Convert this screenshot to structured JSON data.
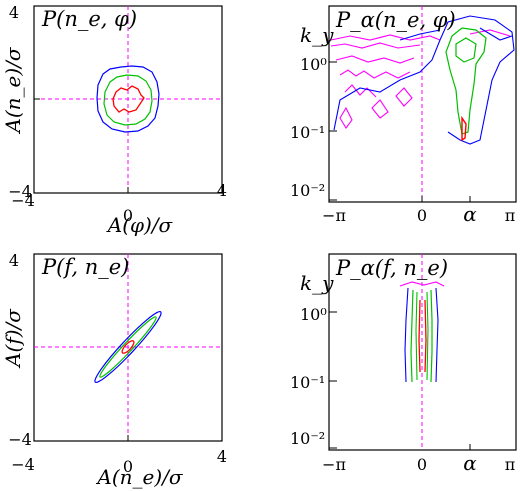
{
  "colors": {
    "frame": "#000000",
    "reference_lines": "#ff00ff",
    "contour_outer": "#0000ff",
    "contour_middle": "#00c000",
    "contour_inner": "#ff0000",
    "contour_extra": "#ff00ff"
  },
  "chart_data": [
    {
      "id": "top-left",
      "type": "contour",
      "title": "P(n_e, φ)",
      "xlabel": "A(φ)/σ",
      "ylabel": "A(n_e)/σ",
      "xlim": [
        -4,
        4
      ],
      "ylim": [
        -4,
        4
      ],
      "x_ticks": [
        "−4",
        "0",
        "4"
      ],
      "y_ticks": [
        "4",
        "0",
        "−4"
      ],
      "reference_lines": {
        "x": 0,
        "y": 0
      },
      "contours": [
        {
          "level": "outer",
          "color": "#0000ff",
          "shape": "circle",
          "cx": 0,
          "cy": 0,
          "rx": 1.1,
          "ry": 1.1
        },
        {
          "level": "middle",
          "color": "#00c000",
          "shape": "circle",
          "cx": 0,
          "cy": 0,
          "rx": 0.8,
          "ry": 0.8
        },
        {
          "level": "inner",
          "color": "#ff0000",
          "shape": "circle",
          "cx": -0.05,
          "cy": 0.05,
          "rx": 0.4,
          "ry": 0.4
        }
      ]
    },
    {
      "id": "top-right",
      "type": "contour",
      "title": "P_α(n_e, φ)",
      "xlabel": "α",
      "ylabel": "k_y",
      "xlim": [
        -3.14159,
        3.14159
      ],
      "ylim": [
        0.01,
        5
      ],
      "y_scale": "log",
      "x_ticks": [
        "−π",
        "0",
        "π"
      ],
      "y_ticks": [
        "10⁰",
        "10⁻¹",
        "10⁻²"
      ],
      "reference_lines": {
        "x": 0
      },
      "note": "contours spread across all α at high k_y; concentrated at α ≈ 1.5 at lower k_y"
    },
    {
      "id": "bottom-left",
      "type": "contour",
      "title": "P(f, n_e)",
      "xlabel": "A(n_e)/σ",
      "ylabel": "A(f)/σ",
      "xlim": [
        -4,
        4
      ],
      "ylim": [
        -4,
        4
      ],
      "x_ticks": [
        "−4",
        "0",
        "4"
      ],
      "y_ticks": [
        "4",
        "0",
        "−4"
      ],
      "reference_lines": {
        "x": 0,
        "y": 0
      },
      "contours": [
        {
          "level": "outer",
          "color": "#0000ff",
          "shape": "ellipse",
          "cx": 0,
          "cy": 0,
          "rx": 2.05,
          "ry": 0.28,
          "angle_deg": 47
        },
        {
          "level": "middle",
          "color": "#00c000",
          "shape": "ellipse",
          "cx": 0,
          "cy": 0,
          "rx": 1.75,
          "ry": 0.2,
          "angle_deg": 47
        },
        {
          "level": "inner",
          "color": "#ff0000",
          "shape": "ellipse",
          "cx": 0,
          "cy": 0,
          "rx": 0.35,
          "ry": 0.12,
          "angle_deg": 47
        }
      ]
    },
    {
      "id": "bottom-right",
      "type": "contour",
      "title": "P_α(f, n_e)",
      "xlabel": "α",
      "ylabel": "k_y",
      "xlim": [
        -3.14159,
        3.14159
      ],
      "ylim": [
        0.01,
        5
      ],
      "y_scale": "log",
      "x_ticks": [
        "−π",
        "0",
        "π"
      ],
      "y_ticks": [
        "10⁰",
        "10⁻¹",
        "10⁻²"
      ],
      "reference_lines": {
        "x": 0
      },
      "note": "narrow vertical band centered at α ≈ 0 spanning k_y ≈ 0.07 to 5"
    }
  ]
}
